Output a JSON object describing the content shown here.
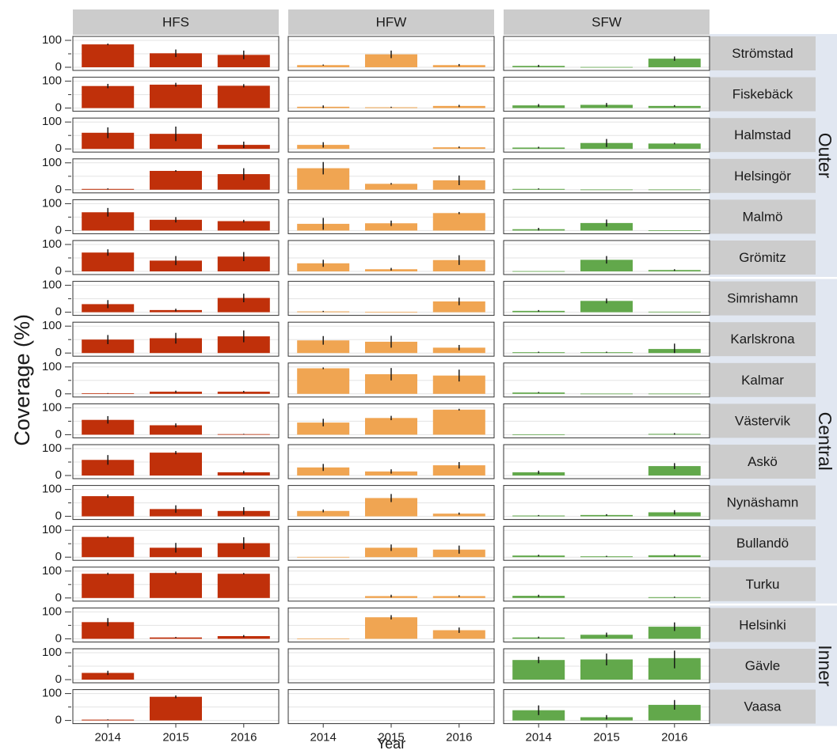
{
  "chart_data": {
    "type": "bar",
    "ylabel": "Coverage (%)",
    "xlabel": "Year",
    "years": [
      "2014",
      "2015",
      "2016"
    ],
    "ylim": [
      0,
      100
    ],
    "yticks": [
      0,
      100
    ],
    "grid": true,
    "columns": [
      {
        "name": "HFS",
        "color": "#c0300a"
      },
      {
        "name": "HFW",
        "color": "#f0a552"
      },
      {
        "name": "SFW",
        "color": "#62a84b"
      }
    ],
    "groups": [
      {
        "name": "Outer",
        "sites": [
          "Strömstad",
          "Fiskebäck",
          "Halmstad",
          "Helsingör",
          "Malmö",
          "Grömitz"
        ]
      },
      {
        "name": "Central",
        "sites": [
          "Simrishamn",
          "Karlskrona",
          "Kalmar",
          "Västervik",
          "Askö",
          "Nynäshamn",
          "Bullandö",
          "Turku"
        ]
      },
      {
        "name": "Inner",
        "sites": [
          "Helsinki",
          "Gävle",
          "Vaasa"
        ]
      }
    ],
    "rows": [
      {
        "site": "Strömstad",
        "HFS": {
          "mean": [
            85,
            52,
            46
          ],
          "err": [
            3,
            14,
            16
          ]
        },
        "HFW": {
          "mean": [
            8,
            48,
            8
          ],
          "err": [
            2,
            14,
            4
          ]
        },
        "SFW": {
          "mean": [
            5,
            1,
            32
          ],
          "err": [
            4,
            0,
            8
          ]
        }
      },
      {
        "site": "Fiskebäck",
        "HFS": {
          "mean": [
            82,
            87,
            83
          ],
          "err": [
            8,
            7,
            6
          ]
        },
        "HFW": {
          "mean": [
            5,
            3,
            8
          ],
          "err": [
            5,
            2,
            4
          ]
        },
        "SFW": {
          "mean": [
            10,
            12,
            8
          ],
          "err": [
            5,
            7,
            3
          ]
        }
      },
      {
        "site": "Halmstad",
        "HFS": {
          "mean": [
            60,
            56,
            15
          ],
          "err": [
            20,
            27,
            12
          ]
        },
        "HFW": {
          "mean": [
            15,
            0,
            6
          ],
          "err": [
            10,
            0,
            3
          ]
        },
        "SFW": {
          "mean": [
            5,
            22,
            20
          ],
          "err": [
            3,
            15,
            3
          ]
        }
      },
      {
        "site": "Helsingör",
        "HFS": {
          "mean": [
            3,
            70,
            58
          ],
          "err": [
            2,
            3,
            22
          ]
        },
        "HFW": {
          "mean": [
            80,
            22,
            35
          ],
          "err": [
            23,
            3,
            18
          ]
        },
        "SFW": {
          "mean": [
            3,
            1,
            1
          ],
          "err": [
            2,
            0,
            0
          ]
        }
      },
      {
        "site": "Malmö",
        "HFS": {
          "mean": [
            68,
            40,
            35
          ],
          "err": [
            16,
            10,
            5
          ]
        },
        "HFW": {
          "mean": [
            25,
            27,
            65
          ],
          "err": [
            22,
            10,
            4
          ]
        },
        "SFW": {
          "mean": [
            5,
            28,
            1
          ],
          "err": [
            5,
            13,
            0
          ]
        }
      },
      {
        "site": "Grömitz",
        "HFS": {
          "mean": [
            70,
            40,
            55
          ],
          "err": [
            12,
            17,
            17
          ]
        },
        "HFW": {
          "mean": [
            30,
            8,
            42
          ],
          "err": [
            13,
            5,
            18
          ]
        },
        "SFW": {
          "mean": [
            1,
            43,
            5
          ],
          "err": [
            0,
            14,
            3
          ]
        }
      },
      {
        "site": "Simrishamn",
        "HFS": {
          "mean": [
            30,
            8,
            53
          ],
          "err": [
            15,
            5,
            16
          ]
        },
        "HFW": {
          "mean": [
            3,
            1,
            40
          ],
          "err": [
            2,
            0,
            14
          ]
        },
        "SFW": {
          "mean": [
            5,
            42,
            2
          ],
          "err": [
            3,
            9,
            0
          ]
        }
      },
      {
        "site": "Karlskrona",
        "HFS": {
          "mean": [
            50,
            55,
            62
          ],
          "err": [
            17,
            20,
            22
          ]
        },
        "HFW": {
          "mean": [
            47,
            42,
            20
          ],
          "err": [
            16,
            22,
            10
          ]
        },
        "SFW": {
          "mean": [
            3,
            3,
            15
          ],
          "err": [
            2,
            2,
            20
          ]
        }
      },
      {
        "site": "Kalmar",
        "HFS": {
          "mean": [
            2,
            8,
            8
          ],
          "err": [
            1,
            4,
            3
          ]
        },
        "HFW": {
          "mean": [
            95,
            73,
            68
          ],
          "err": [
            3,
            23,
            22
          ]
        },
        "SFW": {
          "mean": [
            5,
            1,
            1
          ],
          "err": [
            2,
            0,
            0
          ]
        }
      },
      {
        "site": "Västervik",
        "HFS": {
          "mean": [
            55,
            35,
            2
          ],
          "err": [
            14,
            7,
            1
          ]
        },
        "HFW": {
          "mean": [
            45,
            62,
            93
          ],
          "err": [
            14,
            8,
            3
          ]
        },
        "SFW": {
          "mean": [
            1,
            0,
            3
          ],
          "err": [
            0,
            0,
            3
          ]
        }
      },
      {
        "site": "Askö",
        "HFS": {
          "mean": [
            58,
            85,
            12
          ],
          "err": [
            18,
            6,
            5
          ]
        },
        "HFW": {
          "mean": [
            30,
            15,
            38
          ],
          "err": [
            13,
            8,
            12
          ]
        },
        "SFW": {
          "mean": [
            12,
            0,
            35
          ],
          "err": [
            6,
            0,
            11
          ]
        }
      },
      {
        "site": "Nynäshamn",
        "HFS": {
          "mean": [
            75,
            27,
            20
          ],
          "err": [
            6,
            14,
            14
          ]
        },
        "HFW": {
          "mean": [
            20,
            68,
            10
          ],
          "err": [
            5,
            15,
            4
          ]
        },
        "SFW": {
          "mean": [
            3,
            5,
            15
          ],
          "err": [
            2,
            3,
            8
          ]
        }
      },
      {
        "site": "Bullandö",
        "HFS": {
          "mean": [
            75,
            35,
            52
          ],
          "err": [
            3,
            18,
            22
          ]
        },
        "HFW": {
          "mean": [
            1,
            35,
            28
          ],
          "err": [
            0,
            12,
            15
          ]
        },
        "SFW": {
          "mean": [
            6,
            3,
            7
          ],
          "err": [
            3,
            2,
            4
          ]
        }
      },
      {
        "site": "Turku",
        "HFS": {
          "mean": [
            90,
            93,
            90
          ],
          "err": [
            4,
            5,
            3
          ]
        },
        "HFW": {
          "mean": [
            0,
            7,
            7
          ],
          "err": [
            0,
            5,
            3
          ]
        },
        "SFW": {
          "mean": [
            8,
            0,
            3
          ],
          "err": [
            4,
            0,
            2
          ]
        }
      },
      {
        "site": "Helsinki",
        "HFS": {
          "mean": [
            62,
            5,
            10
          ],
          "err": [
            15,
            2,
            4
          ]
        },
        "HFW": {
          "mean": [
            1,
            80,
            32
          ],
          "err": [
            0,
            8,
            10
          ]
        },
        "SFW": {
          "mean": [
            5,
            15,
            45
          ],
          "err": [
            3,
            8,
            16
          ]
        }
      },
      {
        "site": "Gävle",
        "HFS": {
          "mean": [
            25,
            0,
            0
          ],
          "err": [
            8,
            0,
            0
          ]
        },
        "HFW": {
          "mean": [
            0,
            0,
            0
          ],
          "err": [
            0,
            0,
            0
          ]
        },
        "SFW": {
          "mean": [
            73,
            75,
            80
          ],
          "err": [
            12,
            22,
            38
          ]
        }
      },
      {
        "site": "Vaasa",
        "HFS": {
          "mean": [
            3,
            88,
            0
          ],
          "err": [
            1,
            5,
            0
          ]
        },
        "HFW": {
          "mean": [
            0,
            0,
            0
          ],
          "err": [
            0,
            0,
            0
          ]
        },
        "SFW": {
          "mean": [
            38,
            12,
            58
          ],
          "err": [
            18,
            8,
            18
          ]
        }
      }
    ]
  }
}
